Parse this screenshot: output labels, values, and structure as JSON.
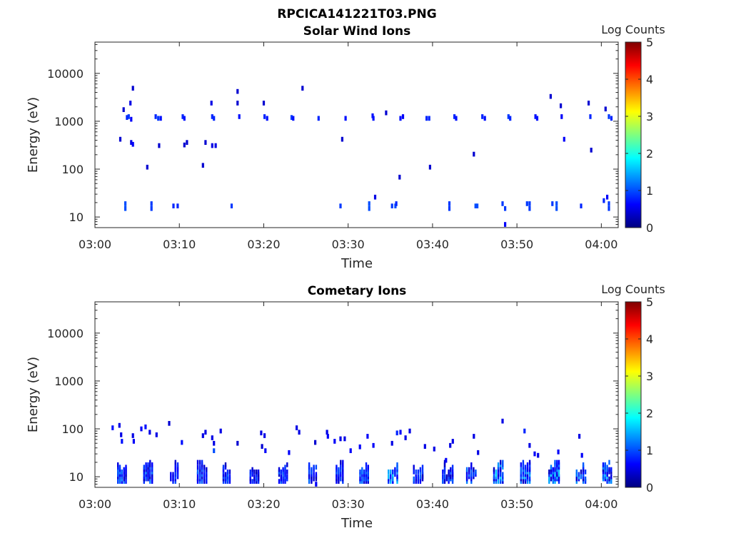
{
  "figure_title": "RPCICA141221T03.PNG",
  "colormap": [
    "#00007f",
    "#0000ff",
    "#007fff",
    "#00ffff",
    "#7fff7f",
    "#ffff00",
    "#ff7f00",
    "#ff0000",
    "#7f0000"
  ],
  "chart_data": [
    {
      "type": "heatmap",
      "title": "Solar Wind Ions",
      "xlabel": "Time",
      "ylabel": "Energy (eV)",
      "colorbar_label": "Log Counts",
      "x_tick_labels": [
        "03:00",
        "03:10",
        "03:20",
        "03:30",
        "03:40",
        "03:50",
        "04:00"
      ],
      "xlim_minutes": [
        0,
        62
      ],
      "y_tick_labels": [
        "10",
        "100",
        "1000",
        "10000"
      ],
      "y_tick_values": [
        10,
        100,
        1000,
        10000
      ],
      "ylim": [
        6,
        45000
      ],
      "y_scale": "log",
      "clim": [
        0,
        5
      ],
      "colorbar_ticks": [
        "0",
        "1",
        "2",
        "3",
        "4",
        "5"
      ],
      "cells": [
        {
          "t": 3.4,
          "e": 1750,
          "c": 0.4
        },
        {
          "t": 3.8,
          "e": 1200,
          "c": 0.8
        },
        {
          "t": 4.0,
          "e": 1250,
          "c": 0.9
        },
        {
          "t": 4.3,
          "e": 1100,
          "c": 0.6
        },
        {
          "t": 4.2,
          "e": 2400,
          "c": 0.5
        },
        {
          "t": 4.5,
          "e": 4900,
          "c": 0.4
        },
        {
          "t": 3.0,
          "e": 420,
          "c": 0.4
        },
        {
          "t": 4.3,
          "e": 360,
          "c": 0.5
        },
        {
          "t": 4.5,
          "e": 330,
          "c": 0.6
        },
        {
          "t": 3.6,
          "e": 19,
          "c": 1.0
        },
        {
          "t": 3.6,
          "e": 15,
          "c": 1.0
        },
        {
          "t": 6.2,
          "e": 110,
          "c": 0.4
        },
        {
          "t": 6.7,
          "e": 19,
          "c": 0.9
        },
        {
          "t": 6.7,
          "e": 15,
          "c": 0.9
        },
        {
          "t": 7.2,
          "e": 1250,
          "c": 0.8
        },
        {
          "t": 7.5,
          "e": 1150,
          "c": 0.9
        },
        {
          "t": 7.8,
          "e": 1150,
          "c": 0.7
        },
        {
          "t": 7.6,
          "e": 310,
          "c": 0.4
        },
        {
          "t": 9.3,
          "e": 17,
          "c": 0.8
        },
        {
          "t": 9.8,
          "e": 17,
          "c": 0.8
        },
        {
          "t": 10.4,
          "e": 1250,
          "c": 0.8
        },
        {
          "t": 10.6,
          "e": 1150,
          "c": 0.7
        },
        {
          "t": 10.9,
          "e": 360,
          "c": 0.4
        },
        {
          "t": 10.6,
          "e": 320,
          "c": 0.4
        },
        {
          "t": 12.8,
          "e": 120,
          "c": 0.4
        },
        {
          "t": 13.1,
          "e": 360,
          "c": 0.4
        },
        {
          "t": 13.8,
          "e": 2400,
          "c": 0.5
        },
        {
          "t": 13.9,
          "e": 1250,
          "c": 0.8
        },
        {
          "t": 14.1,
          "e": 1150,
          "c": 0.8
        },
        {
          "t": 13.9,
          "e": 310,
          "c": 0.5
        },
        {
          "t": 14.3,
          "e": 310,
          "c": 0.5
        },
        {
          "t": 16.2,
          "e": 17,
          "c": 0.9
        },
        {
          "t": 16.9,
          "e": 4200,
          "c": 0.4
        },
        {
          "t": 16.9,
          "e": 2400,
          "c": 0.4
        },
        {
          "t": 17.1,
          "e": 1250,
          "c": 0.7
        },
        {
          "t": 20.0,
          "e": 2400,
          "c": 0.4
        },
        {
          "t": 20.1,
          "e": 1250,
          "c": 0.8
        },
        {
          "t": 20.4,
          "e": 1150,
          "c": 0.7
        },
        {
          "t": 23.3,
          "e": 1200,
          "c": 0.9
        },
        {
          "t": 23.5,
          "e": 1150,
          "c": 0.7
        },
        {
          "t": 24.6,
          "e": 4900,
          "c": 0.4
        },
        {
          "t": 26.5,
          "e": 1150,
          "c": 0.8
        },
        {
          "t": 29.3,
          "e": 420,
          "c": 0.4
        },
        {
          "t": 29.1,
          "e": 17,
          "c": 0.9
        },
        {
          "t": 29.7,
          "e": 1150,
          "c": 0.7
        },
        {
          "t": 32.5,
          "e": 19,
          "c": 1.0
        },
        {
          "t": 32.5,
          "e": 15,
          "c": 1.0
        },
        {
          "t": 32.9,
          "e": 1300,
          "c": 0.7
        },
        {
          "t": 33.0,
          "e": 1150,
          "c": 0.7
        },
        {
          "t": 33.2,
          "e": 26,
          "c": 0.5
        },
        {
          "t": 34.5,
          "e": 1500,
          "c": 0.4
        },
        {
          "t": 35.2,
          "e": 17,
          "c": 0.9
        },
        {
          "t": 35.6,
          "e": 17,
          "c": 1.0
        },
        {
          "t": 35.7,
          "e": 19,
          "c": 0.8
        },
        {
          "t": 36.2,
          "e": 1150,
          "c": 0.7
        },
        {
          "t": 36.5,
          "e": 1250,
          "c": 0.6
        },
        {
          "t": 36.1,
          "e": 68,
          "c": 0.4
        },
        {
          "t": 39.3,
          "e": 1150,
          "c": 0.8
        },
        {
          "t": 39.6,
          "e": 1150,
          "c": 0.8
        },
        {
          "t": 39.7,
          "e": 110,
          "c": 0.4
        },
        {
          "t": 42.0,
          "e": 19,
          "c": 0.9
        },
        {
          "t": 42.0,
          "e": 15,
          "c": 0.9
        },
        {
          "t": 42.6,
          "e": 1250,
          "c": 0.8
        },
        {
          "t": 42.8,
          "e": 1150,
          "c": 0.7
        },
        {
          "t": 44.9,
          "e": 205,
          "c": 0.4
        },
        {
          "t": 45.1,
          "e": 17,
          "c": 1.0
        },
        {
          "t": 45.3,
          "e": 17,
          "c": 1.0
        },
        {
          "t": 45.9,
          "e": 1250,
          "c": 0.8
        },
        {
          "t": 46.2,
          "e": 1150,
          "c": 0.7
        },
        {
          "t": 48.3,
          "e": 19,
          "c": 0.9
        },
        {
          "t": 48.6,
          "e": 15,
          "c": 0.9
        },
        {
          "t": 48.6,
          "e": 7,
          "c": 0.6
        },
        {
          "t": 49.0,
          "e": 1250,
          "c": 0.9
        },
        {
          "t": 49.2,
          "e": 1150,
          "c": 0.8
        },
        {
          "t": 51.2,
          "e": 19,
          "c": 0.9
        },
        {
          "t": 51.5,
          "e": 19,
          "c": 0.9
        },
        {
          "t": 51.5,
          "e": 15,
          "c": 0.9
        },
        {
          "t": 52.2,
          "e": 1250,
          "c": 0.7
        },
        {
          "t": 52.4,
          "e": 1150,
          "c": 0.7
        },
        {
          "t": 54.0,
          "e": 3300,
          "c": 0.4
        },
        {
          "t": 54.2,
          "e": 19,
          "c": 0.9
        },
        {
          "t": 54.7,
          "e": 19,
          "c": 1.0
        },
        {
          "t": 54.7,
          "e": 15,
          "c": 1.0
        },
        {
          "t": 55.2,
          "e": 2100,
          "c": 0.4
        },
        {
          "t": 55.3,
          "e": 1250,
          "c": 0.6
        },
        {
          "t": 55.6,
          "e": 420,
          "c": 0.6
        },
        {
          "t": 57.6,
          "e": 17,
          "c": 0.8
        },
        {
          "t": 58.5,
          "e": 2400,
          "c": 0.4
        },
        {
          "t": 58.7,
          "e": 1250,
          "c": 0.8
        },
        {
          "t": 58.8,
          "e": 250,
          "c": 0.4
        },
        {
          "t": 60.5,
          "e": 1800,
          "c": 0.4
        },
        {
          "t": 60.9,
          "e": 1250,
          "c": 0.9
        },
        {
          "t": 61.2,
          "e": 1150,
          "c": 0.8
        },
        {
          "t": 60.3,
          "e": 22,
          "c": 0.8
        },
        {
          "t": 60.7,
          "e": 26,
          "c": 0.6
        },
        {
          "t": 60.9,
          "e": 19,
          "c": 0.9
        },
        {
          "t": 60.9,
          "e": 15,
          "c": 0.9
        }
      ]
    },
    {
      "type": "heatmap",
      "title": "Cometary Ions",
      "xlabel": "Time",
      "ylabel": "Energy (eV)",
      "colorbar_label": "Log Counts",
      "x_tick_labels": [
        "03:00",
        "03:10",
        "03:20",
        "03:30",
        "03:40",
        "03:50",
        "04:00"
      ],
      "xlim_minutes": [
        0,
        62
      ],
      "y_tick_labels": [
        "10",
        "100",
        "1000",
        "10000"
      ],
      "y_tick_values": [
        10,
        100,
        1000,
        10000
      ],
      "ylim": [
        6,
        45000
      ],
      "y_scale": "log",
      "clim": [
        0,
        5
      ],
      "colorbar_ticks": [
        "0",
        "1",
        "2",
        "3",
        "4",
        "5"
      ],
      "bursts": [
        {
          "t": 3.2,
          "w": 1.2,
          "peak": 1.4
        },
        {
          "t": 6.3,
          "w": 1.2,
          "peak": 1.3
        },
        {
          "t": 9.4,
          "w": 1.1,
          "peak": 1.1
        },
        {
          "t": 12.7,
          "w": 1.3,
          "peak": 1.2
        },
        {
          "t": 15.6,
          "w": 1.0,
          "peak": 1.2
        },
        {
          "t": 18.9,
          "w": 1.2,
          "peak": 1.1
        },
        {
          "t": 22.3,
          "w": 1.2,
          "peak": 1.2
        },
        {
          "t": 25.8,
          "w": 1.1,
          "peak": 1.3
        },
        {
          "t": 29.0,
          "w": 1.0,
          "peak": 1.2
        },
        {
          "t": 31.9,
          "w": 1.2,
          "peak": 1.3
        },
        {
          "t": 35.3,
          "w": 1.3,
          "peak": 1.8
        },
        {
          "t": 38.3,
          "w": 1.3,
          "peak": 1.3
        },
        {
          "t": 41.8,
          "w": 1.4,
          "peak": 1.2
        },
        {
          "t": 44.6,
          "w": 1.3,
          "peak": 1.4
        },
        {
          "t": 47.8,
          "w": 1.3,
          "peak": 1.9
        },
        {
          "t": 51.0,
          "w": 1.3,
          "peak": 1.7
        },
        {
          "t": 54.4,
          "w": 1.4,
          "peak": 1.8
        },
        {
          "t": 57.6,
          "w": 1.3,
          "peak": 1.5
        },
        {
          "t": 60.7,
          "w": 1.2,
          "peak": 1.7
        }
      ],
      "cells": [
        {
          "t": 2.1,
          "e": 105,
          "c": 0.7
        },
        {
          "t": 2.9,
          "e": 118,
          "c": 0.5
        },
        {
          "t": 3.1,
          "e": 75,
          "c": 0.5
        },
        {
          "t": 3.2,
          "e": 55,
          "c": 0.7
        },
        {
          "t": 4.5,
          "e": 72,
          "c": 0.5
        },
        {
          "t": 4.6,
          "e": 55,
          "c": 0.6
        },
        {
          "t": 5.5,
          "e": 100,
          "c": 0.6
        },
        {
          "t": 6.0,
          "e": 110,
          "c": 0.7
        },
        {
          "t": 6.5,
          "e": 85,
          "c": 0.5
        },
        {
          "t": 7.3,
          "e": 75,
          "c": 0.5
        },
        {
          "t": 8.8,
          "e": 130,
          "c": 0.4
        },
        {
          "t": 10.3,
          "e": 52,
          "c": 0.7
        },
        {
          "t": 12.8,
          "e": 72,
          "c": 0.5
        },
        {
          "t": 13.1,
          "e": 85,
          "c": 0.5
        },
        {
          "t": 13.9,
          "e": 65,
          "c": 0.5
        },
        {
          "t": 14.1,
          "e": 50,
          "c": 0.5
        },
        {
          "t": 14.1,
          "e": 35,
          "c": 1.0
        },
        {
          "t": 14.9,
          "e": 90,
          "c": 0.5
        },
        {
          "t": 16.9,
          "e": 50,
          "c": 0.4
        },
        {
          "t": 19.7,
          "e": 82,
          "c": 0.5
        },
        {
          "t": 19.8,
          "e": 43,
          "c": 0.4
        },
        {
          "t": 20.1,
          "e": 72,
          "c": 0.5
        },
        {
          "t": 20.2,
          "e": 35,
          "c": 0.6
        },
        {
          "t": 23.0,
          "e": 32,
          "c": 0.6
        },
        {
          "t": 23.9,
          "e": 105,
          "c": 0.5
        },
        {
          "t": 24.2,
          "e": 85,
          "c": 0.5
        },
        {
          "t": 26.1,
          "e": 52,
          "c": 0.4
        },
        {
          "t": 26.2,
          "e": 7,
          "c": 0.6
        },
        {
          "t": 27.5,
          "e": 85,
          "c": 0.5
        },
        {
          "t": 27.6,
          "e": 70,
          "c": 0.6
        },
        {
          "t": 28.4,
          "e": 55,
          "c": 0.6
        },
        {
          "t": 29.1,
          "e": 62,
          "c": 0.5
        },
        {
          "t": 29.6,
          "e": 62,
          "c": 0.5
        },
        {
          "t": 30.3,
          "e": 35,
          "c": 0.6
        },
        {
          "t": 31.4,
          "e": 42,
          "c": 0.6
        },
        {
          "t": 32.3,
          "e": 70,
          "c": 0.6
        },
        {
          "t": 33.0,
          "e": 45,
          "c": 0.6
        },
        {
          "t": 35.2,
          "e": 50,
          "c": 0.5
        },
        {
          "t": 35.8,
          "e": 82,
          "c": 0.8
        },
        {
          "t": 36.2,
          "e": 85,
          "c": 0.6
        },
        {
          "t": 36.8,
          "e": 65,
          "c": 0.5
        },
        {
          "t": 37.3,
          "e": 90,
          "c": 0.5
        },
        {
          "t": 39.1,
          "e": 43,
          "c": 0.5
        },
        {
          "t": 40.2,
          "e": 38,
          "c": 0.5
        },
        {
          "t": 41.6,
          "e": 22,
          "c": 0.6
        },
        {
          "t": 42.1,
          "e": 45,
          "c": 0.5
        },
        {
          "t": 42.4,
          "e": 55,
          "c": 0.5
        },
        {
          "t": 44.9,
          "e": 70,
          "c": 0.5
        },
        {
          "t": 45.4,
          "e": 32,
          "c": 0.5
        },
        {
          "t": 48.3,
          "e": 145,
          "c": 0.5
        },
        {
          "t": 50.9,
          "e": 90,
          "c": 0.8
        },
        {
          "t": 51.5,
          "e": 45,
          "c": 0.5
        },
        {
          "t": 52.1,
          "e": 30,
          "c": 0.6
        },
        {
          "t": 52.5,
          "e": 28,
          "c": 0.5
        },
        {
          "t": 54.9,
          "e": 33,
          "c": 0.6
        },
        {
          "t": 57.4,
          "e": 70,
          "c": 0.5
        },
        {
          "t": 57.7,
          "e": 28,
          "c": 0.6
        }
      ]
    }
  ]
}
